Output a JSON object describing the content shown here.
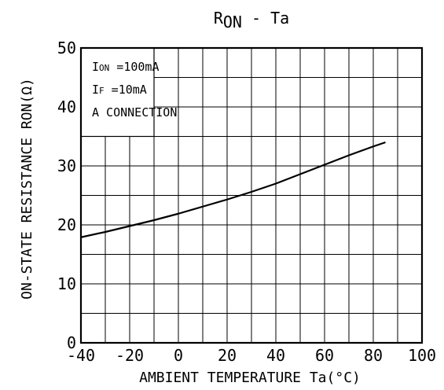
{
  "chart_data": {
    "type": "line",
    "title": "RON - Ta",
    "title_main": "R",
    "title_sub": "ON",
    "title_rest": " - Ta",
    "xlabel": "AMBIENT TEMPERATURE  Ta(°C)",
    "ylabel": "ON-STATE RESISTANCE  RON(Ω)",
    "xlim": [
      -40,
      100
    ],
    "ylim": [
      0,
      50
    ],
    "x_ticks": [
      -40,
      -20,
      0,
      20,
      40,
      60,
      80,
      100
    ],
    "y_ticks": [
      0,
      10,
      20,
      30,
      40,
      50
    ],
    "grid_x_step": 10,
    "grid_y_step": 5,
    "grid": true,
    "series": [
      {
        "x": [
          -40,
          -30,
          -20,
          -10,
          0,
          10,
          20,
          30,
          40,
          50,
          60,
          70,
          80,
          85
        ],
        "y": [
          17.9,
          18.8,
          19.8,
          20.8,
          21.9,
          23.1,
          24.3,
          25.6,
          27.0,
          28.6,
          30.2,
          31.8,
          33.3,
          34.0
        ]
      }
    ],
    "legend_box": {
      "lines": [
        {
          "main": "I",
          "sub": "ON",
          "rest": " =100mA"
        },
        {
          "main": "I",
          "sub": "F",
          "rest": " =10mA"
        },
        {
          "main": "A CONNECTION",
          "sub": "",
          "rest": ""
        }
      ],
      "position": "top-left"
    },
    "line_color": "#000000"
  }
}
